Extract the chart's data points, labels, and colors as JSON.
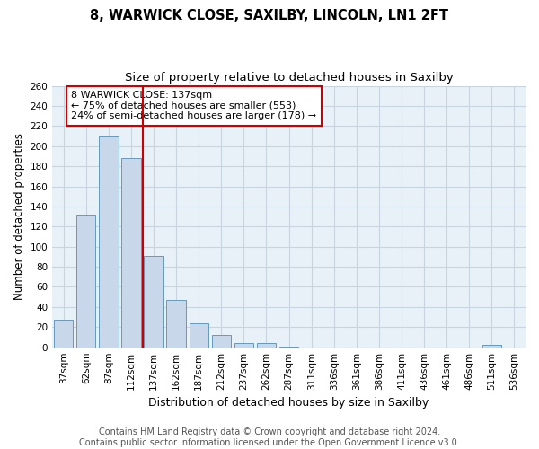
{
  "title1": "8, WARWICK CLOSE, SAXILBY, LINCOLN, LN1 2FT",
  "title2": "Size of property relative to detached houses in Saxilby",
  "xlabel": "Distribution of detached houses by size in Saxilby",
  "ylabel": "Number of detached properties",
  "categories": [
    "37sqm",
    "62sqm",
    "87sqm",
    "112sqm",
    "137sqm",
    "162sqm",
    "187sqm",
    "212sqm",
    "237sqm",
    "262sqm",
    "287sqm",
    "311sqm",
    "336sqm",
    "361sqm",
    "386sqm",
    "411sqm",
    "436sqm",
    "461sqm",
    "486sqm",
    "511sqm",
    "536sqm"
  ],
  "values": [
    27,
    132,
    210,
    188,
    91,
    47,
    24,
    12,
    4,
    4,
    1,
    0,
    0,
    0,
    0,
    0,
    0,
    0,
    0,
    2,
    0
  ],
  "bar_color": "#c8d8ea",
  "bar_edge_color": "#6699bb",
  "vline_index": 4,
  "vline_color": "#cc0000",
  "annotation_text": "8 WARWICK CLOSE: 137sqm\n← 75% of detached houses are smaller (553)\n24% of semi-detached houses are larger (178) →",
  "ylim": [
    0,
    260
  ],
  "yticks": [
    0,
    20,
    40,
    60,
    80,
    100,
    120,
    140,
    160,
    180,
    200,
    220,
    240,
    260
  ],
  "plot_bg_color": "#e8f0f8",
  "fig_bg_color": "#ffffff",
  "grid_color": "#c8d4e0",
  "footer_text": "Contains HM Land Registry data © Crown copyright and database right 2024.\nContains public sector information licensed under the Open Government Licence v3.0.",
  "title1_fontsize": 10.5,
  "title2_fontsize": 9.5,
  "xlabel_fontsize": 9,
  "ylabel_fontsize": 8.5,
  "tick_fontsize": 7.5,
  "annotation_fontsize": 8,
  "footer_fontsize": 7
}
